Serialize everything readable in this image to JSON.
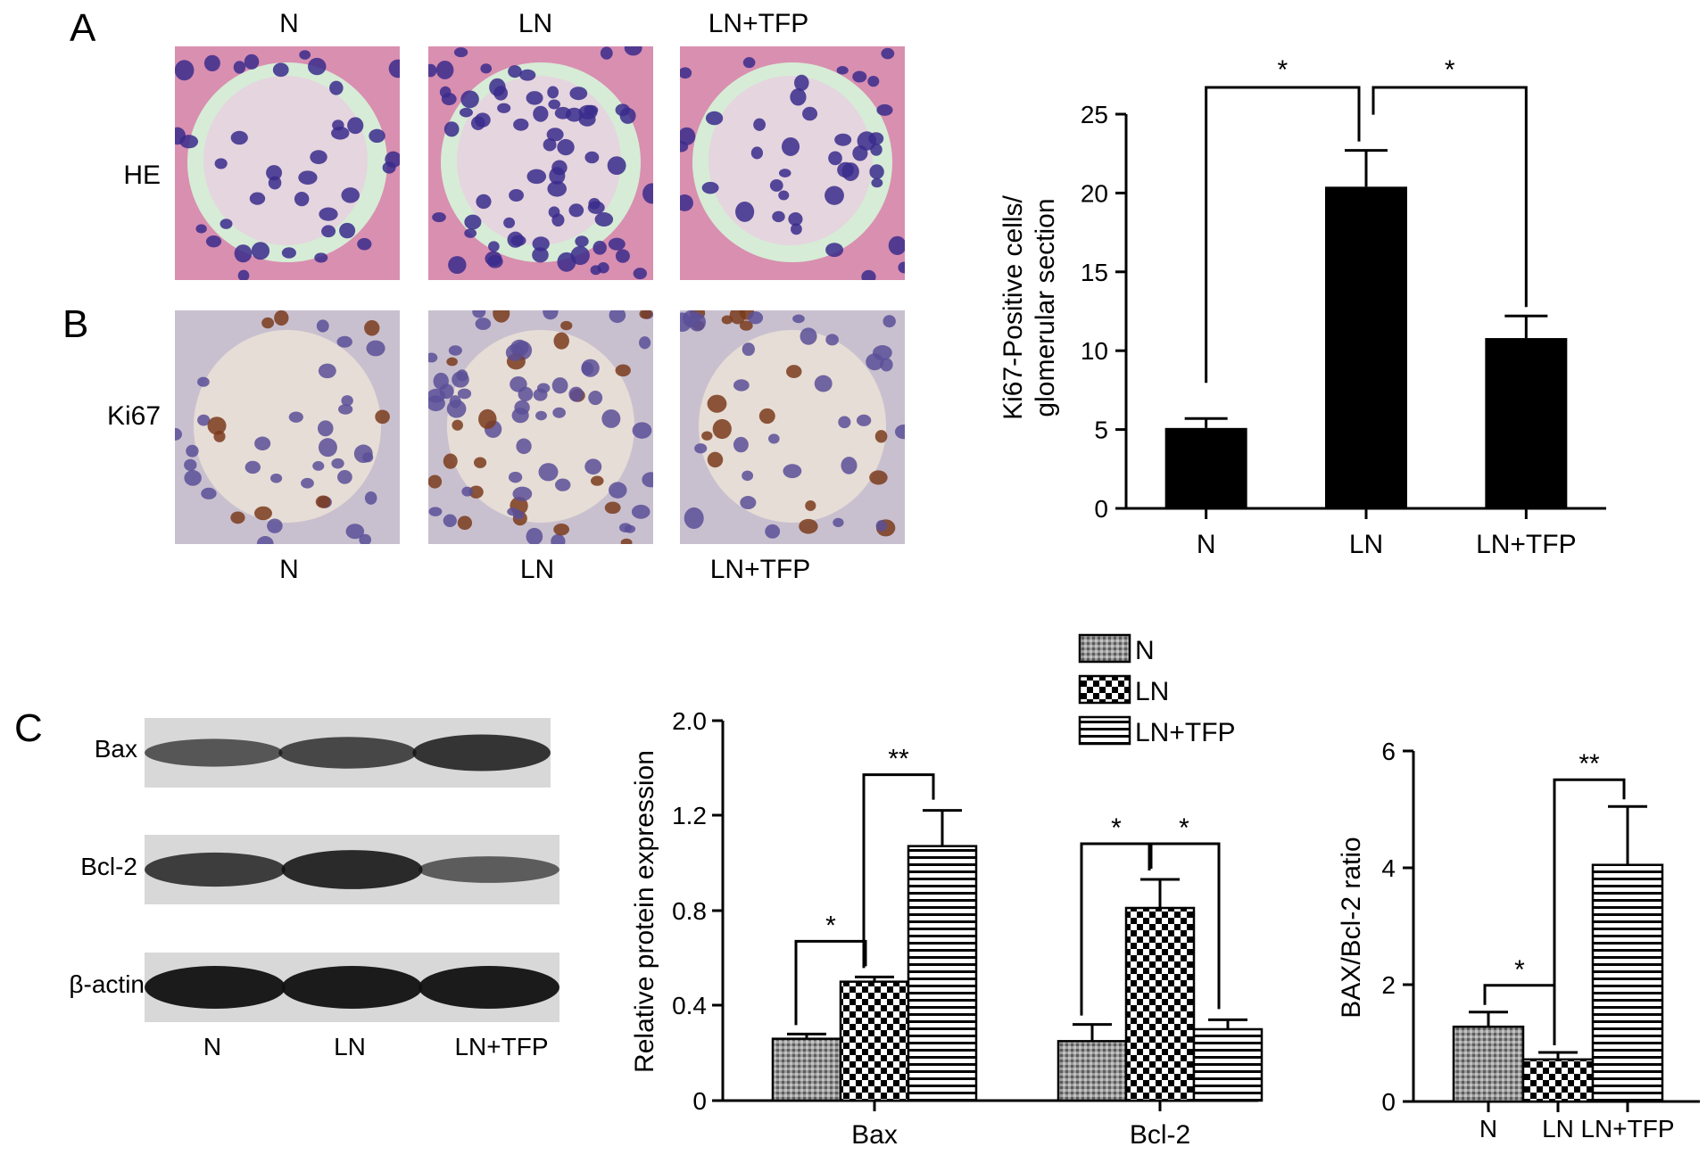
{
  "figure": {
    "panel_letters": {
      "a": "A",
      "b": "B",
      "c": "C"
    },
    "panel_a": {
      "column_labels": [
        "N",
        "LN",
        "LN+TFP"
      ],
      "row_label": "HE"
    },
    "panel_b": {
      "column_labels": [
        "N",
        "LN",
        "LN+TFP"
      ],
      "row_label": "Ki67"
    },
    "panel_c_blot": {
      "band_labels": [
        "Bax",
        "Bcl-2",
        "β-actin"
      ],
      "lane_labels": [
        "N",
        "LN",
        "LN+TFP"
      ]
    },
    "colors": {
      "he_background": "#d98fb0",
      "he_nuclei": "#3a2c8c",
      "he_glomerulus_space": "#d6ecd6",
      "ki67_background": "#c9c0cf",
      "ki67_negative_nuclei": "#5b4f98",
      "ki67_positive_nuclei": "#7a3b1c",
      "bar_fill": "#000000"
    }
  },
  "chart_data": [
    {
      "id": "ki67",
      "type": "bar",
      "categories": [
        "N",
        "LN",
        "LN+TFP"
      ],
      "values": [
        5.1,
        20.4,
        10.8
      ],
      "errors": [
        0.6,
        2.3,
        1.4
      ],
      "ylabel": "Ki67-Positive cells/\nglomerular section",
      "ylabel_lines": [
        "Ki67-Positive cells/",
        "glomerular section"
      ],
      "ylim": [
        0,
        25
      ],
      "yticks": [
        0,
        5,
        10,
        15,
        20,
        25
      ],
      "significance": [
        {
          "from": "N",
          "to": "LN",
          "label": "*"
        },
        {
          "from": "LN",
          "to": "LN+TFP",
          "label": "*"
        }
      ],
      "grid": false
    },
    {
      "id": "protein",
      "type": "bar",
      "categories": [
        "Bax",
        "Bcl-2"
      ],
      "series": [
        {
          "name": "N",
          "values": [
            0.26,
            0.25
          ],
          "errors": [
            0.02,
            0.07
          ],
          "pattern": "dots"
        },
        {
          "name": "LN",
          "values": [
            0.5,
            0.81
          ],
          "errors": [
            0.02,
            0.12
          ],
          "pattern": "checker"
        },
        {
          "name": "LN+TFP",
          "values": [
            1.07,
            0.3
          ],
          "errors": [
            0.15,
            0.04
          ],
          "pattern": "hlines"
        }
      ],
      "ylabel": "Relative protein expression",
      "ylim": [
        0,
        2.0
      ],
      "yticks": [
        "0",
        "0.4",
        "0.8",
        "1.2",
        "2.0"
      ],
      "ytick_values": [
        0,
        0.4,
        0.8,
        1.2,
        2.0
      ],
      "axis_break": true,
      "legend_position": "top",
      "significance": [
        {
          "category": "Bax",
          "from": "N",
          "to": "LN",
          "label": "*"
        },
        {
          "category": "Bax",
          "from": "LN",
          "to": "LN+TFP",
          "label": "**"
        },
        {
          "category": "Bcl-2",
          "from": "N",
          "to": "LN",
          "label": "*"
        },
        {
          "category": "Bcl-2",
          "from": "LN",
          "to": "LN+TFP",
          "label": "*"
        }
      ],
      "grid": false
    },
    {
      "id": "ratio",
      "type": "bar",
      "categories": [
        "N",
        "LN",
        "LN+TFP"
      ],
      "values": [
        1.28,
        0.72,
        4.05
      ],
      "errors": [
        0.25,
        0.12,
        1.0
      ],
      "patterns": [
        "dots",
        "checker",
        "hlines"
      ],
      "ylabel": "BAX/Bcl-2 ratio",
      "ylim": [
        0,
        6
      ],
      "yticks": [
        0,
        2,
        4,
        6
      ],
      "significance": [
        {
          "from": "N",
          "to": "LN",
          "label": "*"
        },
        {
          "from": "LN",
          "to": "LN+TFP",
          "label": "**"
        }
      ],
      "grid": false
    }
  ]
}
